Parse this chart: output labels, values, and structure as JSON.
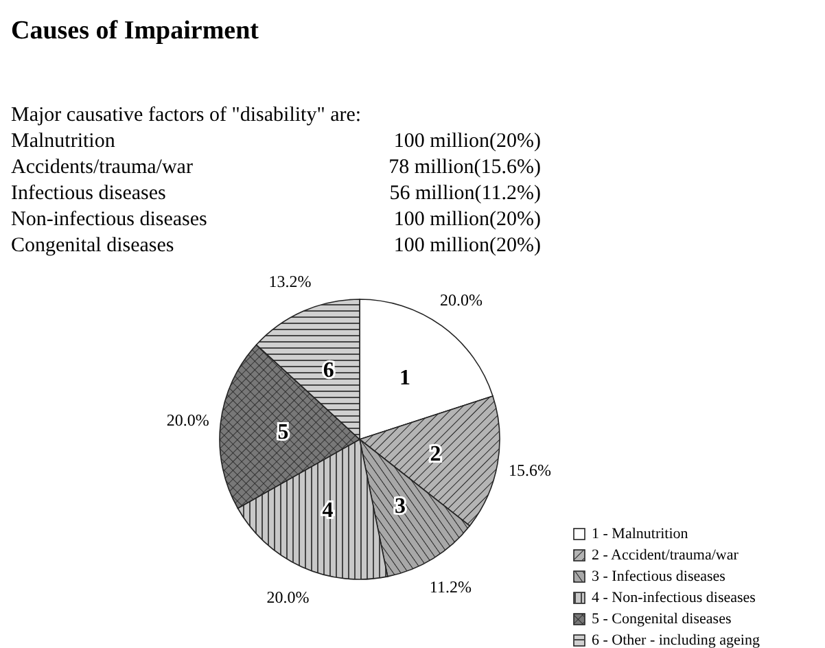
{
  "chart_data": {
    "type": "pie",
    "title": "Causes of Impairment",
    "subtitle": "Major causative factors of \"disability\" are:",
    "annotations": [
      "Malnutrition",
      "100 million(20%)",
      "Accidents/trauma/war",
      "78 million(15.6%)",
      "Infectious diseases",
      "56 million(11.2%)",
      "Non-infectious diseases",
      "100 million(20%)",
      "Congenital diseases",
      "100 million(20%)",
      {
        "text": "1",
        "x": "1 - Malnutrition"
      },
      {
        "text": "2",
        "x": "2 - Accident/trauma/war"
      },
      {
        "text": "3",
        "x": "3 - Infectious diseases"
      },
      {
        "text": "4",
        "x": "4 - Non-infectious diseases"
      },
      {
        "text": "5",
        "x": "5 - Congenital diseases"
      },
      {
        "text": "6",
        "x": "6 - Other - including ageing"
      }
    ],
    "categories": [
      "1 - Malnutrition",
      "2 - Accident/trauma/war",
      "3 - Infectious diseases",
      "4 - Non-infectious diseases",
      "5 - Congenital diseases",
      "6 - Other - including ageing"
    ],
    "values": [
      20,
      15.6,
      11.2,
      20,
      20,
      13.2
    ],
    "value_labels": [
      "20.0%",
      "15.6%",
      "11.2%",
      "20.0%",
      "20.0%",
      "13.2%"
    ],
    "colors": [
      "#ffffff",
      "#b4b4b4",
      "#a8a8a8",
      "#c8c8c8",
      "#787878",
      "#d0d0d0"
    ],
    "legend": "bottom right"
  }
}
